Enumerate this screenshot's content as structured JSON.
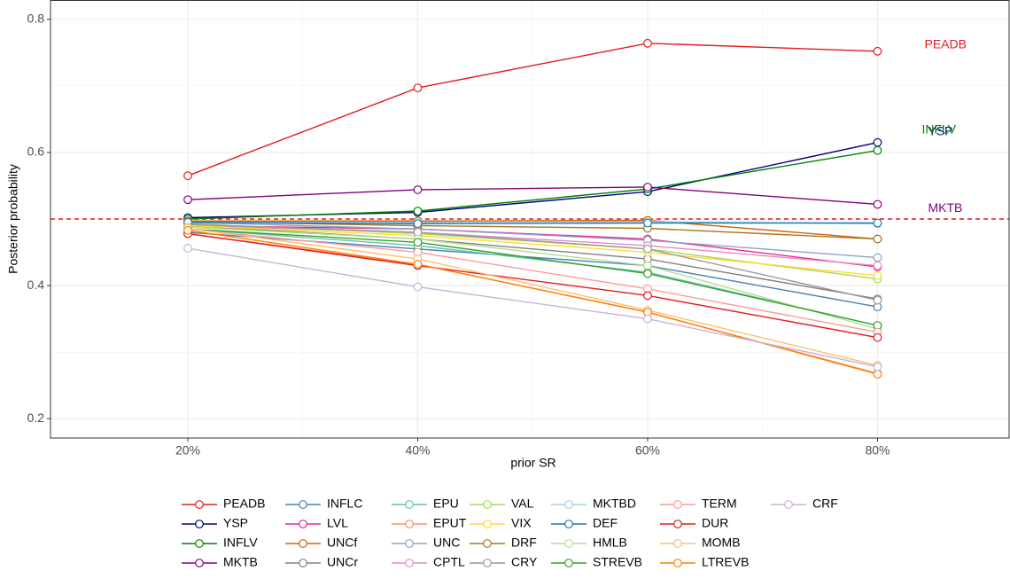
{
  "chart_data": {
    "type": "line",
    "x_label": "prior SR",
    "y_label": "Posterior probability",
    "categories": [
      "20%",
      "40%",
      "60%",
      "80%"
    ],
    "ylim": [
      0.171,
      0.829
    ],
    "yticks": [
      0.2,
      0.4,
      0.6,
      0.8
    ],
    "grid": true,
    "hline": 0.5,
    "hline_color": "#e41a1c",
    "legend": "bottom",
    "series": [
      {
        "name": "PEADB",
        "color": "#e41a1c",
        "values": [
          0.565,
          0.697,
          0.764,
          0.752
        ]
      },
      {
        "name": "YSP",
        "color": "#000080",
        "values": [
          0.502,
          0.51,
          0.541,
          0.615
        ]
      },
      {
        "name": "INFLV",
        "color": "#008000",
        "values": [
          0.5,
          0.512,
          0.545,
          0.603
        ]
      },
      {
        "name": "MKTB",
        "color": "#800080",
        "values": [
          0.529,
          0.544,
          0.548,
          0.522
        ]
      },
      {
        "name": "INFLC",
        "color": "#4682b4",
        "values": [
          0.48,
          0.455,
          0.43,
          0.368
        ]
      },
      {
        "name": "LVL",
        "color": "#e7298a",
        "values": [
          0.49,
          0.485,
          0.47,
          0.428
        ]
      },
      {
        "name": "UNCf",
        "color": "#d95f02",
        "values": [
          0.497,
          0.497,
          0.498,
          0.47
        ]
      },
      {
        "name": "UNCr",
        "color": "#808080",
        "values": [
          0.49,
          0.47,
          0.44,
          0.38
        ]
      },
      {
        "name": "EPU",
        "color": "#66c2a5",
        "values": [
          0.485,
          0.46,
          0.42,
          0.34
        ]
      },
      {
        "name": "EPUT",
        "color": "#fc8d62",
        "values": [
          0.478,
          0.432,
          0.36,
          0.268
        ]
      },
      {
        "name": "UNC",
        "color": "#8da0cb",
        "values": [
          0.495,
          0.485,
          0.468,
          0.442
        ]
      },
      {
        "name": "CPTL",
        "color": "#e78ac3",
        "values": [
          0.49,
          0.48,
          0.46,
          0.43
        ]
      },
      {
        "name": "VAL",
        "color": "#a6d854",
        "values": [
          0.493,
          0.478,
          0.455,
          0.41
        ]
      },
      {
        "name": "VIX",
        "color": "#ffd92f",
        "values": [
          0.49,
          0.475,
          0.45,
          0.415
        ]
      },
      {
        "name": "DRF",
        "color": "#a6761d",
        "values": [
          0.496,
          0.49,
          0.486,
          0.47
        ]
      },
      {
        "name": "CRY",
        "color": "#999999",
        "values": [
          0.492,
          0.48,
          0.455,
          0.378
        ]
      },
      {
        "name": "MKTBD",
        "color": "#a6cee3",
        "values": [
          0.495,
          0.495,
          0.496,
          0.493
        ]
      },
      {
        "name": "DEF",
        "color": "#1f78b4",
        "values": [
          0.495,
          0.493,
          0.494,
          0.494
        ]
      },
      {
        "name": "HMLB",
        "color": "#b2df8a",
        "values": [
          0.488,
          0.47,
          0.43,
          0.335
        ]
      },
      {
        "name": "STREVB",
        "color": "#33a02c",
        "values": [
          0.485,
          0.465,
          0.418,
          0.34
        ]
      },
      {
        "name": "TERM",
        "color": "#fb9a99",
        "values": [
          0.485,
          0.45,
          0.395,
          0.33
        ]
      },
      {
        "name": "DUR",
        "color": "#e31a1c",
        "values": [
          0.478,
          0.43,
          0.385,
          0.322
        ]
      },
      {
        "name": "MOMB",
        "color": "#fdbf6f",
        "values": [
          0.486,
          0.44,
          0.363,
          0.28
        ]
      },
      {
        "name": "LTREVB",
        "color": "#ff7f00",
        "values": [
          0.483,
          0.432,
          0.36,
          0.267
        ]
      },
      {
        "name": "CRF",
        "color": "#cab2d6",
        "values": [
          0.456,
          0.398,
          0.35,
          0.278
        ]
      }
    ]
  }
}
